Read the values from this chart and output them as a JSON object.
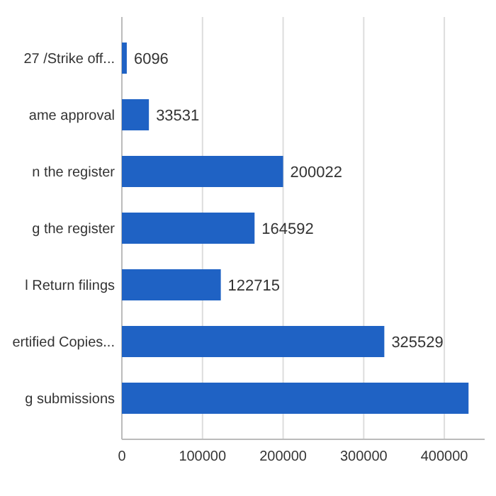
{
  "chart_data": {
    "type": "bar",
    "orientation": "horizontal",
    "categories": [
      "27 /Strike off...",
      "ame approval",
      "n the register",
      "g the register",
      "l Return filings",
      "ertified Copies...",
      "g submissions"
    ],
    "values": [
      6096,
      33531,
      200022,
      164592,
      122715,
      325529,
      430000
    ],
    "value_labels": [
      "6096",
      "33531",
      "200022",
      "164592",
      "122715",
      "325529",
      null
    ],
    "color": "#1f62c4",
    "xlim": [
      0,
      450000
    ],
    "xticks": [
      0,
      100000,
      200000,
      300000,
      400000
    ],
    "grid": "x"
  }
}
